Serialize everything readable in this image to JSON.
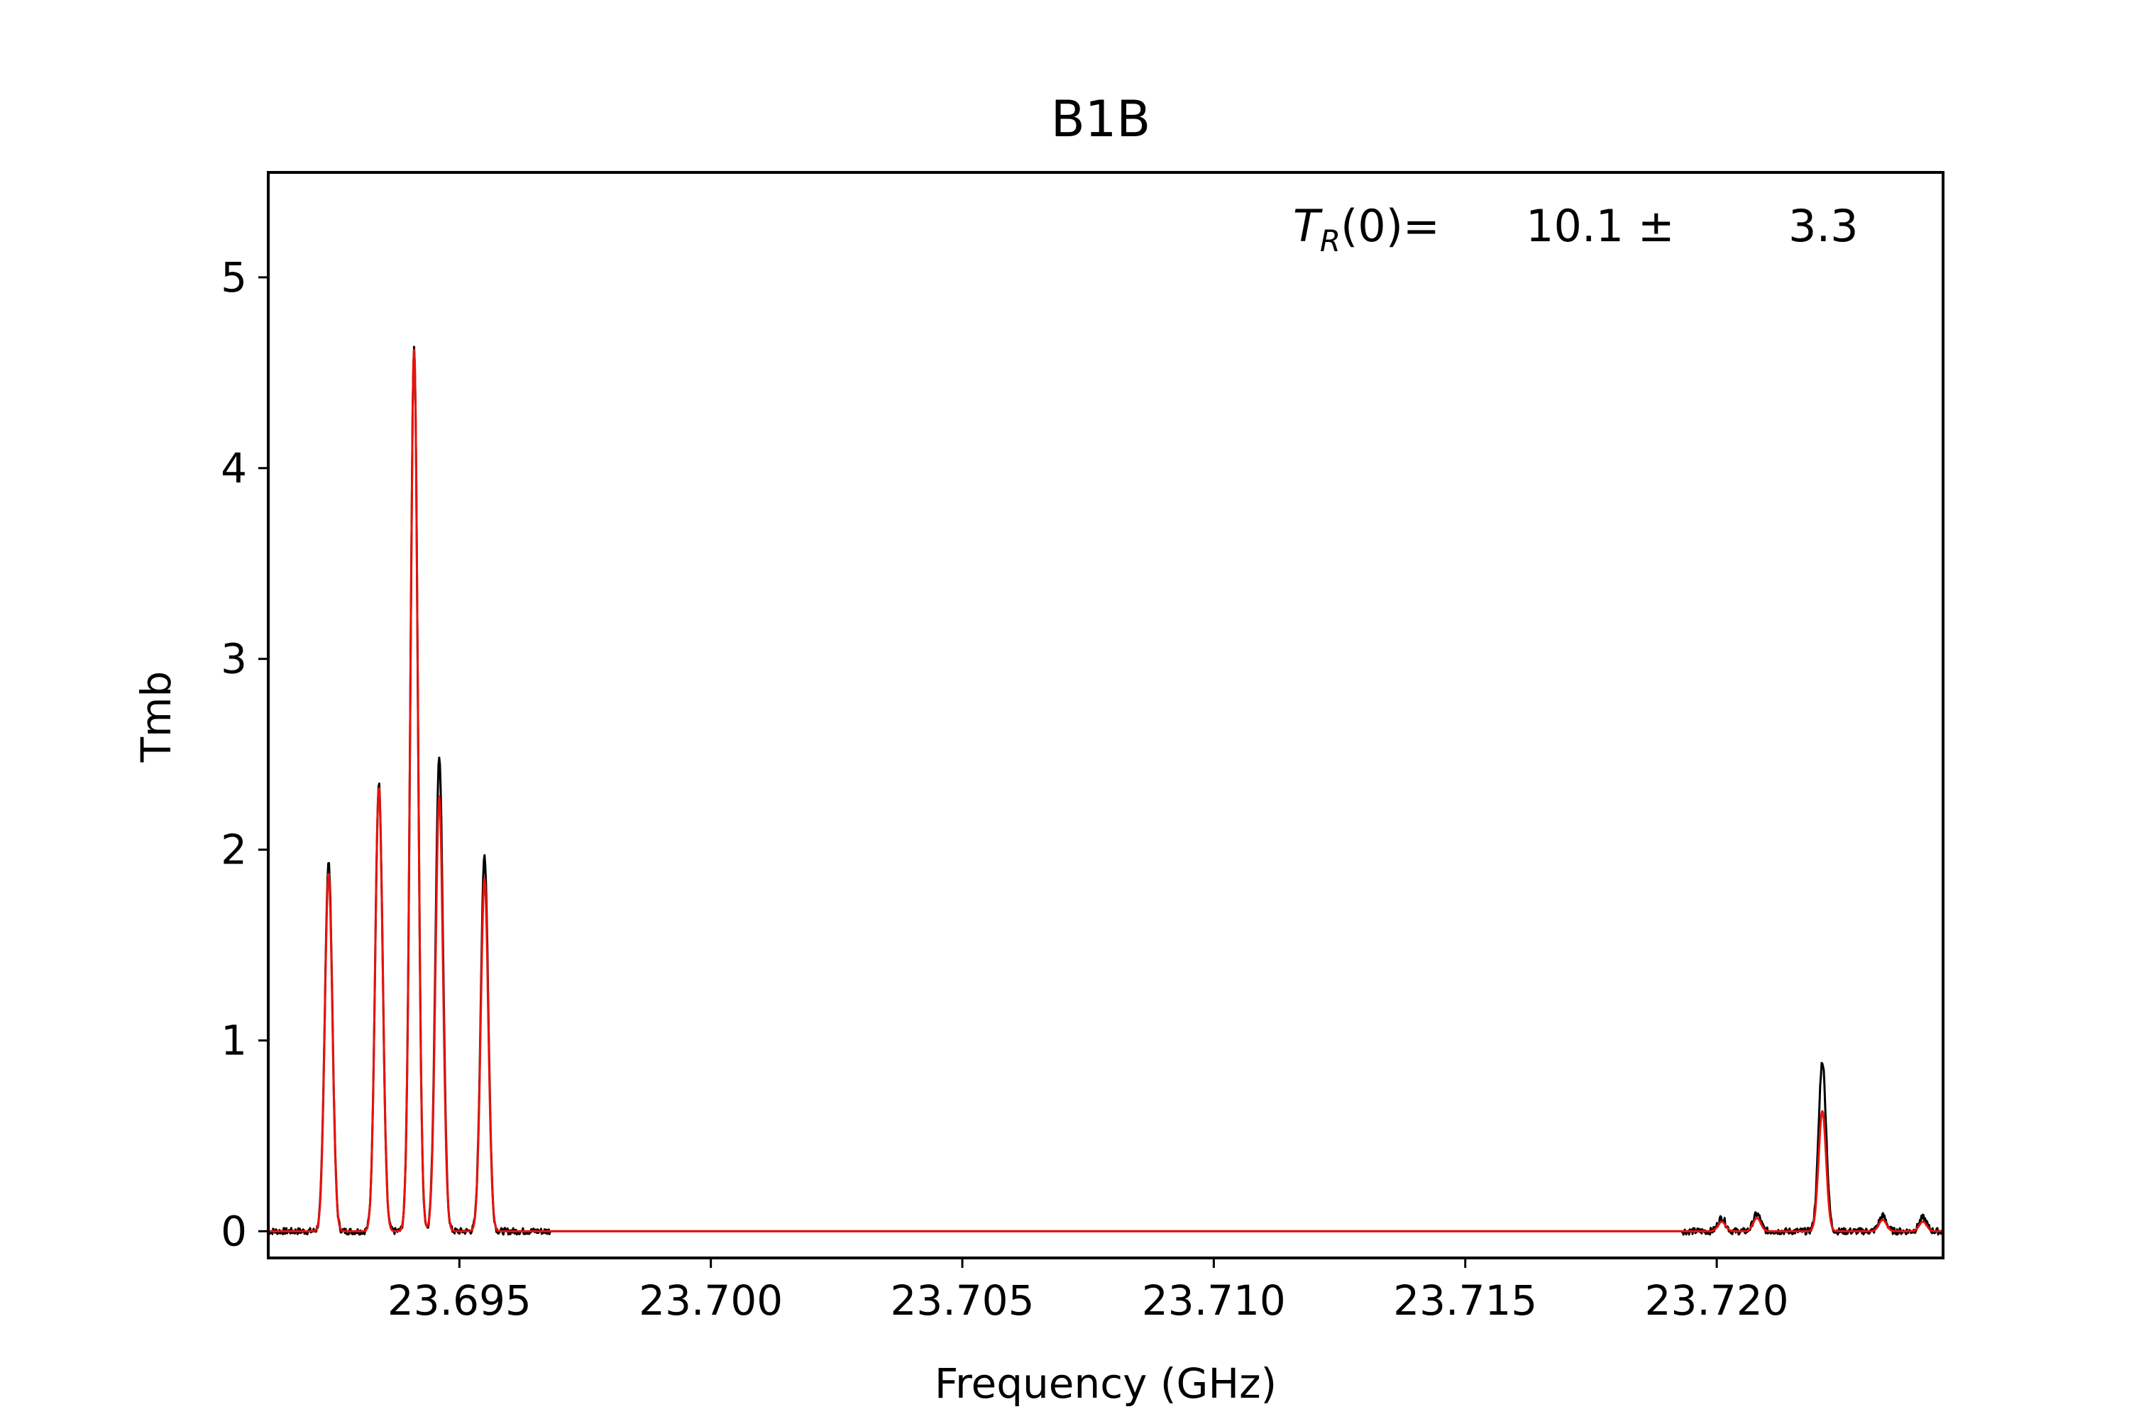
{
  "chart_data": {
    "type": "line",
    "title": "B1B",
    "xlabel": "Frequency (GHz)",
    "ylabel": "Tmb",
    "xlim": [
      23.6912,
      23.7245
    ],
    "ylim": [
      -0.14,
      5.55
    ],
    "grid": false,
    "x_ticks": [
      23.695,
      23.7,
      23.705,
      23.71,
      23.715,
      23.72
    ],
    "x_tick_labels": [
      "23.695",
      "23.700",
      "23.705",
      "23.710",
      "23.715",
      "23.720"
    ],
    "y_ticks": [
      0,
      1,
      2,
      3,
      4,
      5
    ],
    "y_tick_labels": [
      "0",
      "1",
      "2",
      "3",
      "4",
      "5"
    ],
    "annotation": {
      "label_T": "T",
      "label_sub": "R",
      "label_rest": "(0)=",
      "value": "10.1 ±",
      "error": "3.3"
    },
    "series": [
      {
        "color": "#000000",
        "peaks": [
          {
            "center": 23.6924,
            "height": 1.93
          },
          {
            "center": 23.6934,
            "height": 2.34
          },
          {
            "center": 23.6941,
            "height": 4.63
          },
          {
            "center": 23.6946,
            "height": 2.49
          },
          {
            "center": 23.6955,
            "height": 1.97
          },
          {
            "center": 23.7201,
            "height": 0.07
          },
          {
            "center": 23.7208,
            "height": 0.09
          },
          {
            "center": 23.7221,
            "height": 0.89
          },
          {
            "center": 23.7233,
            "height": 0.08
          },
          {
            "center": 23.7241,
            "height": 0.07
          }
        ]
      },
      {
        "color": "#e8120c",
        "peaks": [
          {
            "center": 23.6924,
            "height": 1.88
          },
          {
            "center": 23.6934,
            "height": 2.33
          },
          {
            "center": 23.6941,
            "height": 4.62
          },
          {
            "center": 23.6946,
            "height": 2.28
          },
          {
            "center": 23.6955,
            "height": 1.85
          },
          {
            "center": 23.7201,
            "height": 0.05
          },
          {
            "center": 23.7208,
            "height": 0.07
          },
          {
            "center": 23.7221,
            "height": 0.63
          },
          {
            "center": 23.7233,
            "height": 0.06
          },
          {
            "center": 23.7241,
            "height": 0.05
          }
        ]
      }
    ]
  }
}
